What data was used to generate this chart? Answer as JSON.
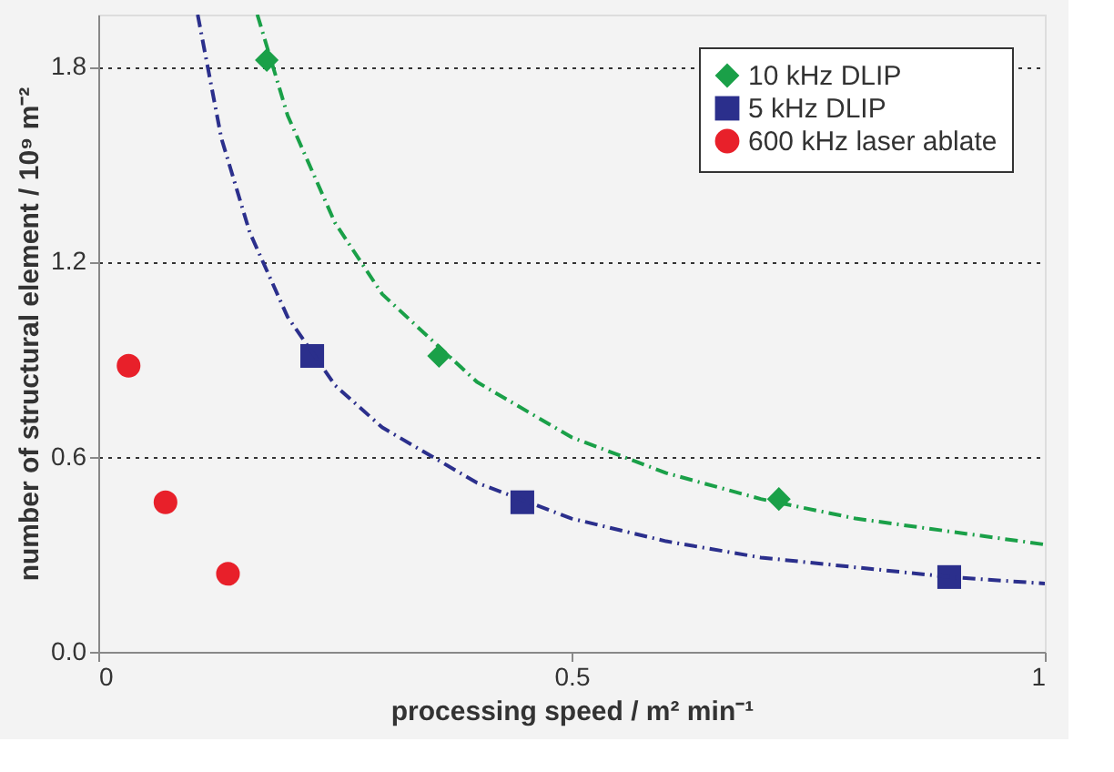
{
  "chart_data": {
    "type": "scatter",
    "xlabel": "processing speed / m² min⁻¹",
    "ylabel": "number of structural element / 10⁹ m⁻²",
    "xlim": [
      0,
      1
    ],
    "xticks": [
      0,
      0.5,
      1
    ],
    "ylim": [
      0,
      1.96
    ],
    "yticks": [
      {
        "value": 0,
        "label": "0.0"
      },
      {
        "value": 0.6,
        "label": "0.6"
      },
      {
        "value": 1.2,
        "label": "1.2"
      },
      {
        "value": 1.8,
        "label": "1.8"
      }
    ],
    "grid": "y",
    "legend": "top right",
    "series": [
      {
        "name": "10 kHz DLIP",
        "color": "#1aa048",
        "marker": "diamond",
        "x": [
          0.178,
          0.36,
          0.719
        ],
        "values": [
          1.82,
          0.91,
          0.47
        ]
      },
      {
        "name": "5 kHz DLIP",
        "color": "#2b2f8c",
        "marker": "square",
        "x": [
          0.226,
          0.448,
          0.899
        ],
        "values": [
          0.91,
          0.46,
          0.23
        ]
      },
      {
        "name": "600 kHz laser ablate",
        "color": "#e8202a",
        "marker": "circle",
        "x": [
          0.032,
          0.071,
          0.137
        ],
        "values": [
          0.88,
          0.46,
          0.24
        ]
      },
      {
        "type": "line",
        "color": "#1aa048",
        "line_style": "dashed",
        "x": [
          0.168,
          0.2,
          0.25,
          0.3,
          0.4,
          0.5,
          0.6,
          0.7,
          0.8,
          0.9,
          1.0
        ],
        "values": [
          1.96,
          1.65,
          1.32,
          1.1,
          0.83,
          0.66,
          0.55,
          0.47,
          0.41,
          0.37,
          0.33
        ]
      },
      {
        "type": "line",
        "color": "#2b2f8c",
        "line_style": "dashed",
        "x": [
          0.105,
          0.13,
          0.16,
          0.2,
          0.25,
          0.3,
          0.4,
          0.5,
          0.6,
          0.7,
          0.8,
          0.9,
          1.0
        ],
        "values": [
          1.96,
          1.58,
          1.29,
          1.03,
          0.82,
          0.69,
          0.52,
          0.41,
          0.34,
          0.29,
          0.26,
          0.23,
          0.21
        ]
      }
    ]
  }
}
